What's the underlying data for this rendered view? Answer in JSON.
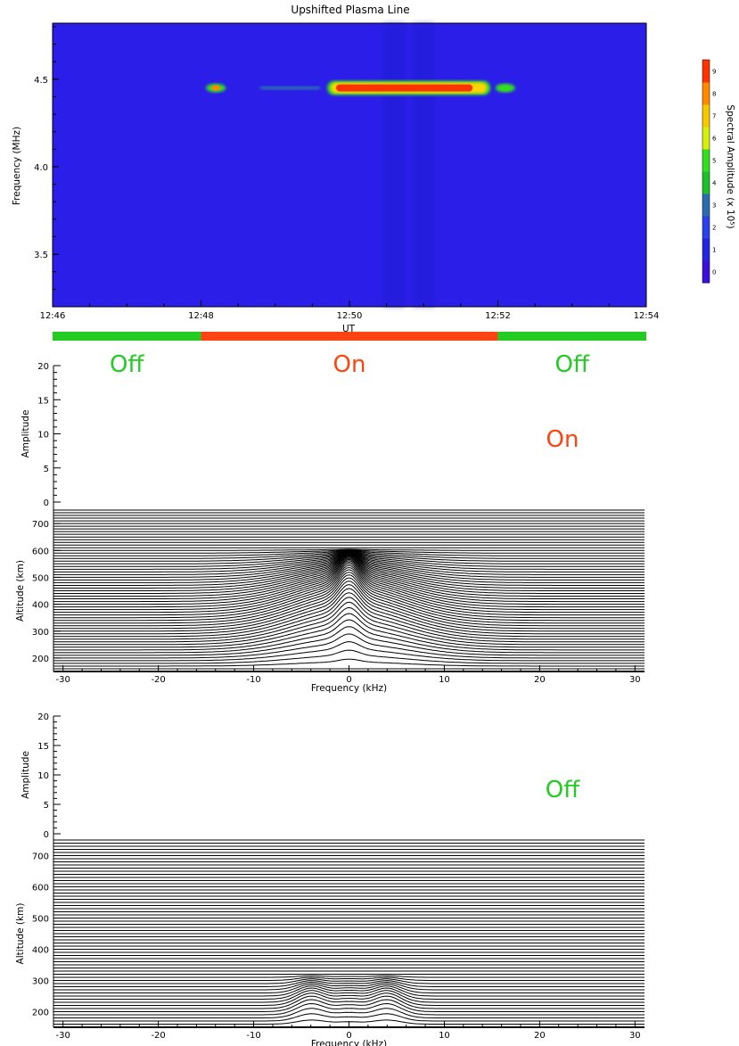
{
  "chart_data": [
    {
      "type": "heatmap",
      "title": "Upshifted Plasma Line",
      "xlabel": "UT",
      "ylabel": "Frequency (MHz)",
      "x_ticks": [
        "12:46",
        "12:48",
        "12:50",
        "12:52",
        "12:54"
      ],
      "y_ticks": [
        "3.5",
        "4.0",
        "4.5"
      ],
      "ylim": [
        3.2,
        4.82
      ],
      "xlim_minutes": [
        0,
        8
      ],
      "background_color": "#2a1ee8",
      "features": [
        {
          "ut": "12:48.2",
          "freq_mhz": 4.45,
          "amplitude": 8
        },
        {
          "ut_start": "12:48.8",
          "ut_end": "12:49.6",
          "freq_mhz": 4.45,
          "amplitude": 2
        },
        {
          "ut_start": "12:49.7",
          "ut_end": "12:51.9",
          "freq_mhz": 4.45,
          "amplitude": 9
        },
        {
          "ut": "12:52.1",
          "freq_mhz": 4.45,
          "amplitude": 5
        }
      ],
      "colorbar": {
        "label": "Spectral Amplitude (x 10⁵)",
        "ticks": [
          "0",
          "1",
          "2",
          "3",
          "4",
          "5",
          "6",
          "7",
          "8",
          "9"
        ],
        "colors": [
          "#3a10d8",
          "#2424e0",
          "#2a40e8",
          "#2a6cb0",
          "#1fbf2c",
          "#33dd22",
          "#d6ee10",
          "#f5c800",
          "#ff8a00",
          "#ff3300"
        ]
      },
      "heater_state": {
        "segments": [
          {
            "label": "Off",
            "start": "12:46",
            "end": "12:48",
            "color": "#22cc22"
          },
          {
            "label": "On",
            "start": "12:48",
            "end": "12:52",
            "color": "#ff4411"
          },
          {
            "label": "Off",
            "start": "12:52",
            "end": "12:54",
            "color": "#22cc22"
          }
        ]
      }
    },
    {
      "type": "line",
      "panel_label": "On",
      "panel_label_color": "#ff4411",
      "xlabel": "Frequency (kHz)",
      "ylabel_top": "Amplitude",
      "ylabel_bottom": "Altitude (km)",
      "x_ticks": [
        "-30",
        "-20",
        "-10",
        "0",
        "10",
        "20",
        "30"
      ],
      "amp_ticks": [
        "0",
        "5",
        "10",
        "15",
        "20"
      ],
      "alt_ticks": [
        "200",
        "300",
        "400",
        "500",
        "600",
        "700"
      ],
      "xlim": [
        -31,
        31
      ],
      "altitudes_km": [
        150,
        750
      ],
      "trace_spacing_km": 10,
      "peak_profile": {
        "center_khz": 0,
        "peak_alt_km": 605,
        "base_alt_km": 200,
        "width_khz": 8
      }
    },
    {
      "type": "line",
      "panel_label": "Off",
      "panel_label_color": "#22cc22",
      "xlabel": "Frequency (kHz)",
      "ylabel_top": "Amplitude",
      "ylabel_bottom": "Altitude (km)",
      "x_ticks": [
        "-30",
        "-20",
        "-10",
        "0",
        "10",
        "20",
        "30"
      ],
      "amp_ticks": [
        "0",
        "5",
        "10",
        "15",
        "20"
      ],
      "alt_ticks": [
        "200",
        "300",
        "400",
        "500",
        "600",
        "700"
      ],
      "xlim": [
        -31,
        31
      ],
      "altitudes_km": [
        150,
        750
      ],
      "trace_spacing_km": 10,
      "peak_profile": {
        "center_khz": 0,
        "peak_alt_km": 320,
        "base_alt_km": 190,
        "width_khz": 6
      }
    }
  ]
}
